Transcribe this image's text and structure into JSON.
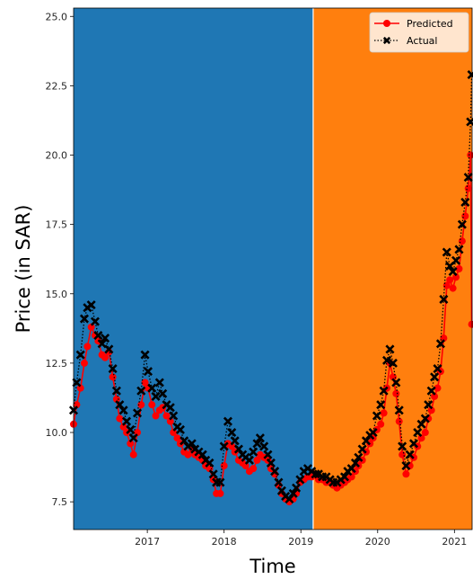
{
  "chart_data": {
    "type": "line",
    "title": "",
    "xlabel": "Time",
    "ylabel": "Price (in SAR)",
    "x_ticks": [
      "2017",
      "2018",
      "2019",
      "2020",
      "2021"
    ],
    "y_ticks": [
      "7.5",
      "10.0",
      "12.5",
      "15.0",
      "17.5",
      "20.0",
      "22.5",
      "25.0"
    ],
    "xlim": [
      2016.04,
      2021.23
    ],
    "ylim": [
      6.5,
      25.3
    ],
    "grid": false,
    "legend_position": "top-right",
    "regions": [
      {
        "x_start": 2016.04,
        "x_end": 2019.16,
        "color": "#1f77b4"
      },
      {
        "x_start": 2019.16,
        "x_end": 2021.23,
        "color": "#ff7f0e"
      }
    ],
    "series": [
      {
        "name": "Predicted",
        "color": "#ff0000",
        "line_style": "solid",
        "marker": "circle",
        "x": [
          2016.04,
          2016.08,
          2016.13,
          2016.18,
          2016.22,
          2016.27,
          2016.32,
          2016.36,
          2016.41,
          2016.45,
          2016.5,
          2016.55,
          2016.6,
          2016.64,
          2016.69,
          2016.73,
          2016.78,
          2016.82,
          2016.87,
          2016.92,
          2016.97,
          2017.01,
          2017.06,
          2017.11,
          2017.16,
          2017.2,
          2017.25,
          2017.3,
          2017.34,
          2017.39,
          2017.43,
          2017.48,
          2017.53,
          2017.58,
          2017.62,
          2017.67,
          2017.72,
          2017.76,
          2017.81,
          2017.86,
          2017.9,
          2017.95,
          2018.0,
          2018.05,
          2018.1,
          2018.14,
          2018.19,
          2018.24,
          2018.28,
          2018.33,
          2018.38,
          2018.43,
          2018.47,
          2018.52,
          2018.57,
          2018.61,
          2018.66,
          2018.71,
          2018.75,
          2018.8,
          2018.85,
          2018.9,
          2018.94,
          2018.99,
          2019.04,
          2019.09,
          2019.14,
          2019.19,
          2019.23,
          2019.28,
          2019.33,
          2019.38,
          2019.42,
          2019.47,
          2019.52,
          2019.57,
          2019.61,
          2019.66,
          2019.71,
          2019.75,
          2019.8,
          2019.85,
          2019.9,
          2019.94,
          2019.99,
          2020.04,
          2020.08,
          2020.12,
          2020.16,
          2020.2,
          2020.24,
          2020.28,
          2020.32,
          2020.37,
          2020.42,
          2020.47,
          2020.52,
          2020.57,
          2020.62,
          2020.66,
          2020.7,
          2020.74,
          2020.78,
          2020.82,
          2020.86,
          2020.9,
          2020.94,
          2020.98,
          2021.02,
          2021.06,
          2021.1,
          2021.14,
          2021.18,
          2021.21,
          2021.225
        ],
        "y": [
          10.3,
          11.0,
          11.6,
          12.5,
          13.1,
          13.8,
          13.5,
          13.3,
          12.8,
          12.7,
          12.9,
          12.0,
          11.2,
          10.5,
          10.2,
          10.0,
          9.6,
          9.2,
          10.0,
          11.0,
          11.8,
          11.6,
          11.0,
          10.6,
          10.8,
          10.9,
          10.6,
          10.4,
          10.0,
          9.8,
          9.6,
          9.3,
          9.2,
          9.4,
          9.2,
          9.1,
          9.0,
          8.8,
          8.7,
          8.3,
          7.8,
          7.8,
          8.8,
          9.6,
          9.5,
          9.3,
          9.0,
          8.9,
          8.8,
          8.6,
          8.7,
          9.0,
          9.2,
          9.1,
          9.0,
          8.7,
          8.5,
          8.1,
          7.8,
          7.6,
          7.5,
          7.6,
          7.8,
          8.2,
          8.3,
          8.4,
          8.4,
          8.5,
          8.3,
          8.3,
          8.2,
          8.2,
          8.1,
          8.0,
          8.1,
          8.2,
          8.3,
          8.4,
          8.6,
          8.8,
          9.0,
          9.3,
          9.6,
          9.8,
          10.1,
          10.3,
          10.7,
          11.6,
          12.5,
          12.0,
          11.4,
          10.4,
          9.2,
          8.5,
          8.8,
          9.1,
          9.5,
          9.8,
          10.0,
          10.5,
          10.8,
          11.3,
          11.6,
          12.2,
          13.4,
          15.3,
          15.5,
          15.2,
          15.6,
          15.9,
          16.9,
          17.8,
          18.8,
          20.0,
          13.9
        ]
      },
      {
        "name": "Actual",
        "color": "#000000",
        "line_style": "dotted",
        "marker": "x",
        "x": [
          2016.04,
          2016.08,
          2016.13,
          2016.18,
          2016.22,
          2016.27,
          2016.32,
          2016.36,
          2016.41,
          2016.45,
          2016.5,
          2016.55,
          2016.6,
          2016.64,
          2016.69,
          2016.73,
          2016.78,
          2016.82,
          2016.87,
          2016.92,
          2016.97,
          2017.01,
          2017.06,
          2017.11,
          2017.16,
          2017.2,
          2017.25,
          2017.3,
          2017.34,
          2017.39,
          2017.43,
          2017.48,
          2017.53,
          2017.58,
          2017.62,
          2017.67,
          2017.72,
          2017.76,
          2017.81,
          2017.86,
          2017.9,
          2017.95,
          2018.0,
          2018.05,
          2018.1,
          2018.14,
          2018.19,
          2018.24,
          2018.28,
          2018.33,
          2018.38,
          2018.43,
          2018.47,
          2018.52,
          2018.57,
          2018.61,
          2018.66,
          2018.71,
          2018.75,
          2018.8,
          2018.85,
          2018.9,
          2018.94,
          2018.99,
          2019.04,
          2019.09,
          2019.14,
          2019.19,
          2019.23,
          2019.28,
          2019.33,
          2019.38,
          2019.42,
          2019.47,
          2019.52,
          2019.57,
          2019.61,
          2019.66,
          2019.71,
          2019.75,
          2019.8,
          2019.85,
          2019.9,
          2019.94,
          2019.99,
          2020.04,
          2020.08,
          2020.12,
          2020.16,
          2020.2,
          2020.24,
          2020.28,
          2020.32,
          2020.37,
          2020.42,
          2020.47,
          2020.52,
          2020.57,
          2020.62,
          2020.66,
          2020.7,
          2020.74,
          2020.78,
          2020.82,
          2020.86,
          2020.9,
          2020.94,
          2020.98,
          2021.02,
          2021.06,
          2021.1,
          2021.14,
          2021.18,
          2021.21,
          2021.225
        ],
        "y": [
          10.8,
          11.8,
          12.8,
          14.1,
          14.5,
          14.6,
          14.0,
          13.5,
          13.2,
          13.4,
          13.0,
          12.3,
          11.5,
          11.0,
          10.8,
          10.4,
          10.1,
          9.8,
          10.7,
          11.5,
          12.8,
          12.2,
          11.6,
          11.3,
          11.8,
          11.4,
          11.0,
          10.9,
          10.6,
          10.2,
          10.1,
          9.7,
          9.5,
          9.6,
          9.4,
          9.3,
          9.2,
          9.0,
          8.9,
          8.5,
          8.2,
          8.2,
          9.5,
          10.4,
          10.0,
          9.7,
          9.4,
          9.2,
          9.1,
          9.0,
          9.3,
          9.6,
          9.8,
          9.5,
          9.2,
          8.9,
          8.6,
          8.2,
          7.9,
          7.7,
          7.6,
          7.8,
          8.0,
          8.3,
          8.6,
          8.7,
          8.6,
          8.5,
          8.5,
          8.4,
          8.4,
          8.3,
          8.2,
          8.2,
          8.3,
          8.4,
          8.6,
          8.7,
          8.9,
          9.1,
          9.4,
          9.7,
          9.9,
          10.0,
          10.6,
          11.0,
          11.5,
          12.6,
          13.0,
          12.5,
          11.8,
          10.8,
          9.5,
          8.8,
          9.2,
          9.6,
          10.0,
          10.3,
          10.5,
          11.0,
          11.5,
          12.0,
          12.3,
          13.2,
          14.8,
          16.5,
          16.0,
          15.8,
          16.2,
          16.6,
          17.5,
          18.3,
          19.2,
          21.2,
          22.9
        ]
      }
    ]
  }
}
